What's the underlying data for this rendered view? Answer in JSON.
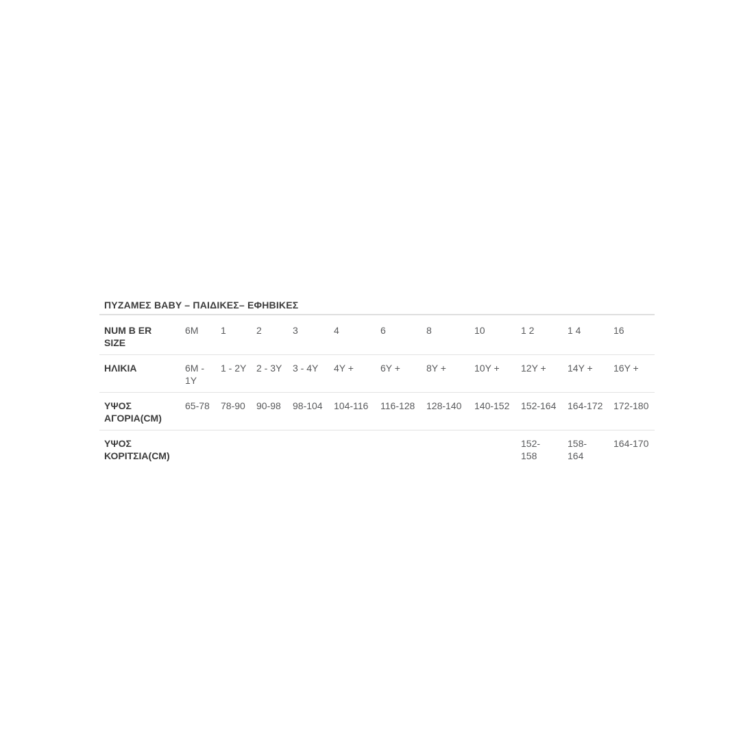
{
  "page": {
    "background_color": "#ffffff"
  },
  "size_chart": {
    "title": "ΠΥΖΑΜΕΣ BABY – ΠΑΙΔΙΚΕΣ– ΕΦΗΒΙΚΕΣ",
    "colors": {
      "title_text": "#3b3b3b",
      "label_text": "#3b3b3b",
      "value_text": "#58595b",
      "divider": "#e2e2e2"
    },
    "rows": [
      {
        "label": "NUM B ER\nSIZE",
        "cells": [
          "6M",
          "1",
          "2",
          "3",
          "4",
          "6",
          "8",
          "10",
          "1 2",
          "1 4",
          "16"
        ]
      },
      {
        "label": "ΗΛΙΚΙΑ",
        "cells": [
          "6M -\n1Y",
          "1 - 2Y",
          "2 - 3Y",
          "3 - 4Y",
          "4Y +",
          "6Y +",
          "8Y +",
          "10Y +",
          "12Y +",
          "14Y +",
          "16Y +"
        ]
      },
      {
        "label": "ΥΨΟΣ\nΑΓΟΡΙΑ(CM)",
        "cells": [
          "65-78",
          "78-90",
          "90-98",
          "98-104",
          "104-116",
          "116-128",
          "128-140",
          "140-152",
          "152-164",
          "164-172",
          "172-180"
        ]
      },
      {
        "label": "ΥΨΟΣ\nΚΟΡΙΤΣΙΑ(CM)",
        "cells": [
          "",
          "",
          "",
          "",
          "",
          "",
          "",
          "",
          "152-\n158",
          "158-\n164",
          "164-170"
        ]
      }
    ]
  }
}
